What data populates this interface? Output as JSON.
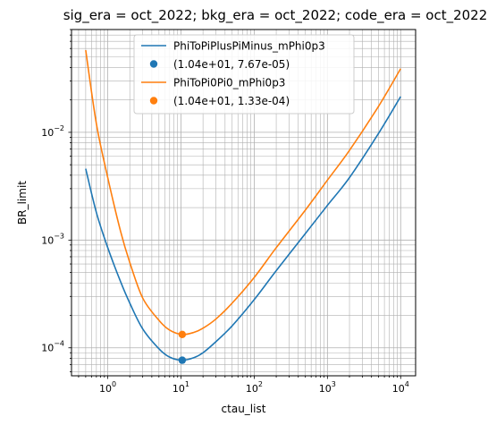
{
  "chart_data": {
    "type": "line",
    "title": "sig_era = oct_2022; bkg_era = oct_2022; code_era = oct_2022",
    "xlabel": "ctau_list",
    "ylabel": "BR_limit",
    "xscale": "log",
    "yscale": "log",
    "xlim": [
      0.32,
      16000
    ],
    "ylim": [
      5.5e-05,
      0.09
    ],
    "grid": true,
    "grid_minor": true,
    "legend_loc": "upper center",
    "x_ticks": [
      {
        "value": 1,
        "base": "10",
        "exp": "0"
      },
      {
        "value": 10,
        "base": "10",
        "exp": "1"
      },
      {
        "value": 100,
        "base": "10",
        "exp": "2"
      },
      {
        "value": 1000,
        "base": "10",
        "exp": "3"
      },
      {
        "value": 10000,
        "base": "10",
        "exp": "4"
      }
    ],
    "y_ticks": [
      {
        "value": 0.0001,
        "base": "10",
        "exp": "−4"
      },
      {
        "value": 0.001,
        "base": "10",
        "exp": "−3"
      },
      {
        "value": 0.01,
        "base": "10",
        "exp": "−2"
      }
    ],
    "series": [
      {
        "name": "PhiToPiPlusPiMinus_mPhi0p3",
        "color": "#1f77b4",
        "kind": "line",
        "x": [
          0.5,
          0.7,
          1,
          1.5,
          2,
          3,
          5,
          7,
          10.4,
          15,
          20,
          30,
          50,
          100,
          200,
          500,
          1000,
          2000,
          5000,
          10000
        ],
        "y": [
          0.0046,
          0.0018,
          0.00085,
          0.00041,
          0.00026,
          0.00015,
          9.8e-05,
          8.2e-05,
          7.67e-05,
          8.1e-05,
          9e-05,
          0.000114,
          0.00016,
          0.00028,
          0.00052,
          0.00115,
          0.0021,
          0.0038,
          0.0098,
          0.0215
        ]
      },
      {
        "name": "(1.04e+01, 7.67e-05)",
        "color": "#1f77b4",
        "kind": "point",
        "x": [
          10.4
        ],
        "y": [
          7.67e-05
        ]
      },
      {
        "name": "PhiToPi0Pi0_mPhi0p3",
        "color": "#ff7f0e",
        "kind": "line",
        "x": [
          0.5,
          0.7,
          1,
          1.5,
          2,
          3,
          5,
          7,
          10.4,
          15,
          20,
          30,
          50,
          100,
          200,
          500,
          1000,
          2000,
          5000,
          10000
        ],
        "y": [
          0.058,
          0.012,
          0.0038,
          0.0012,
          0.00062,
          0.00029,
          0.00018,
          0.000146,
          0.000133,
          0.000139,
          0.000152,
          0.000185,
          0.00026,
          0.00045,
          0.00085,
          0.0019,
          0.0036,
          0.0068,
          0.0175,
          0.039
        ]
      },
      {
        "name": "(1.04e+01, 1.33e-04)",
        "color": "#ff7f0e",
        "kind": "point",
        "x": [
          10.4
        ],
        "y": [
          0.000133
        ]
      }
    ]
  }
}
